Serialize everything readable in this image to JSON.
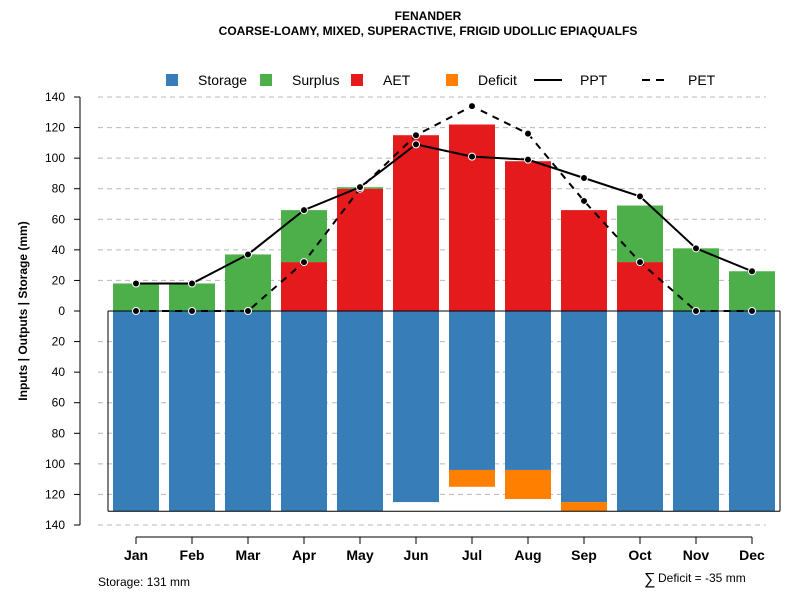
{
  "chart_data": {
    "type": "bar",
    "title": "FENANDER",
    "subtitle": "COARSE-LOAMY, MIXED, SUPERACTIVE, FRIGID UDOLLIC EPIAQUALFS",
    "ylabel": "Inputs | Outputs | Storage    (mm)",
    "categories": [
      "Jan",
      "Feb",
      "Mar",
      "Apr",
      "May",
      "Jun",
      "Jul",
      "Aug",
      "Sep",
      "Oct",
      "Nov",
      "Dec"
    ],
    "ylim": [
      -140,
      140
    ],
    "yticks": [
      140,
      120,
      100,
      80,
      60,
      40,
      20,
      0,
      -20,
      -40,
      -60,
      -80,
      -100,
      -120,
      -140
    ],
    "ytick_labels": [
      "140",
      "120",
      "100",
      "80",
      "60",
      "40",
      "20",
      "0",
      "20",
      "40",
      "60",
      "80",
      "100",
      "120",
      "140"
    ],
    "legend": [
      {
        "name": "Storage",
        "kind": "box",
        "color": "#377EB8"
      },
      {
        "name": "Surplus",
        "kind": "box",
        "color": "#4DAF4A"
      },
      {
        "name": "AET",
        "kind": "box",
        "color": "#E41A1C"
      },
      {
        "name": "Deficit",
        "kind": "box",
        "color": "#FF7F00"
      },
      {
        "name": "PPT",
        "kind": "solid",
        "color": "#000000"
      },
      {
        "name": "PET",
        "kind": "dashed",
        "color": "#000000"
      }
    ],
    "series": [
      {
        "name": "AET",
        "color": "#E41A1C",
        "values": [
          0,
          0,
          0,
          32,
          80,
          115,
          122,
          98,
          66,
          32,
          0,
          0
        ]
      },
      {
        "name": "Surplus",
        "color": "#4DAF4A",
        "values": [
          18,
          18,
          37,
          34,
          1,
          0,
          0,
          0,
          0,
          37,
          41,
          26
        ]
      },
      {
        "name": "Storage",
        "color": "#377EB8",
        "values": [
          131,
          131,
          131,
          131,
          131,
          125,
          104,
          104,
          125,
          131,
          131,
          131
        ]
      },
      {
        "name": "Deficit",
        "color": "#FF7F00",
        "values": [
          0,
          0,
          0,
          0,
          0,
          0,
          11,
          19,
          6,
          0,
          0,
          0
        ]
      },
      {
        "name": "PPT",
        "color": "#000000",
        "values": [
          18,
          18,
          37,
          66,
          81,
          109,
          101,
          99,
          87,
          75,
          41,
          26
        ]
      },
      {
        "name": "PET",
        "color": "#000000",
        "values": [
          0,
          0,
          0,
          32,
          80,
          115,
          134,
          116,
          72,
          32,
          0,
          0
        ]
      }
    ],
    "storage_capacity": 131,
    "grid": true,
    "legend_position": "top"
  },
  "footer": {
    "storage_text": "Storage: 131 mm",
    "deficit_symbol": "∑",
    "deficit_text": "Deficit = -35 mm"
  }
}
